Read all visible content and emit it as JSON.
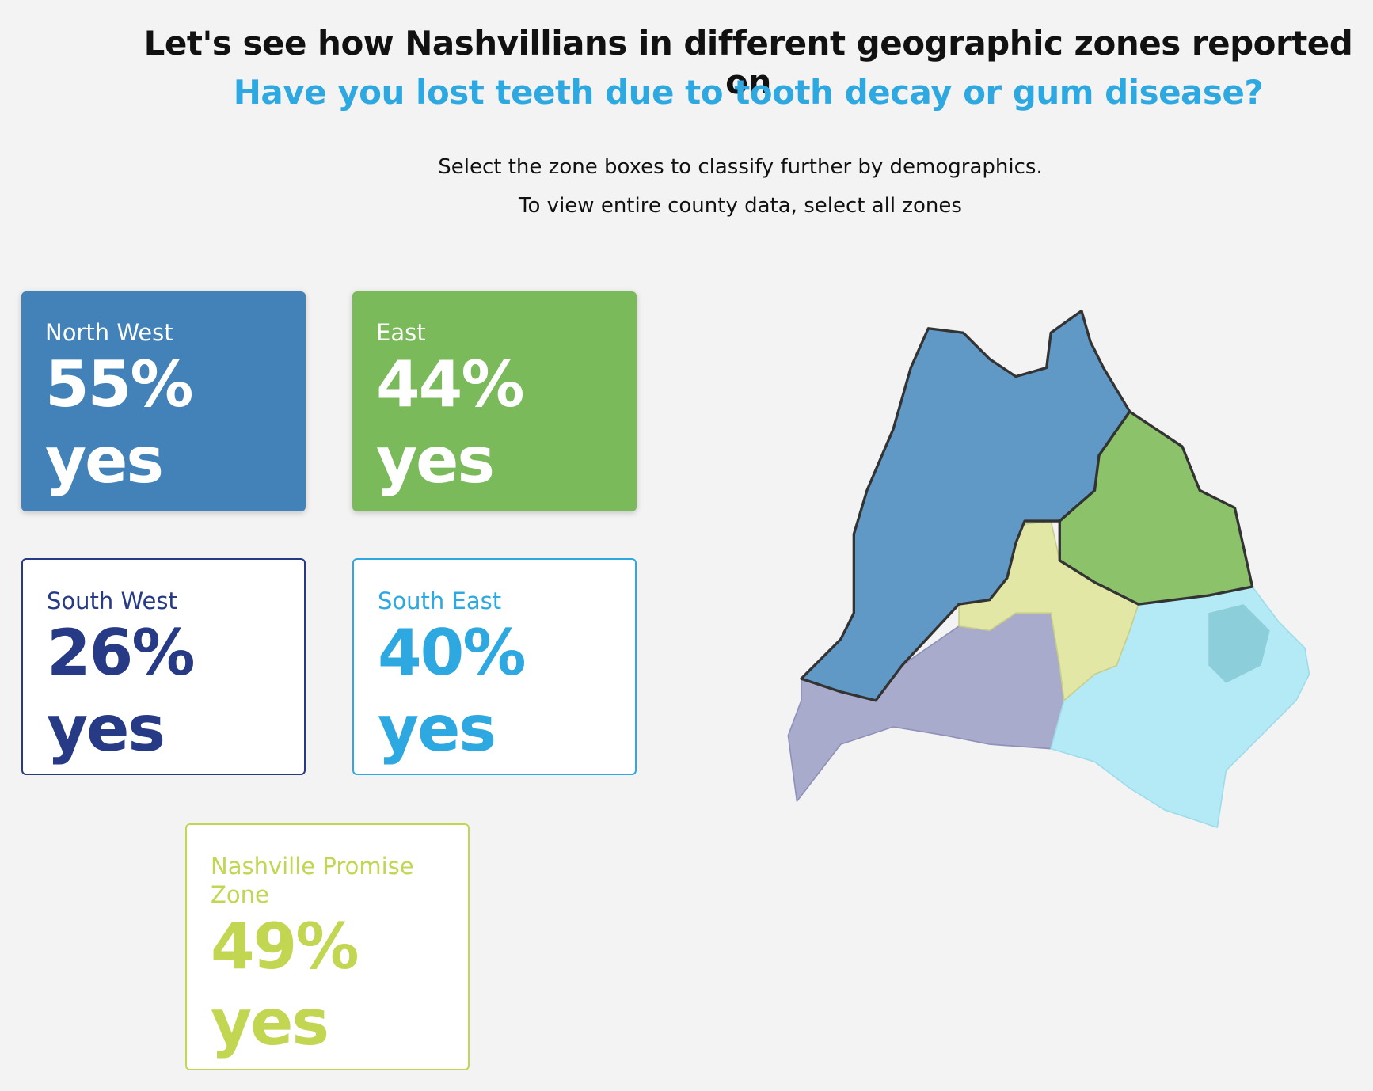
{
  "header": {
    "title": "Let's see how Nashvillians in different geographic zones reported on",
    "question": "Have you lost teeth due to tooth decay or gum disease?"
  },
  "instructions": [
    "Select the zone boxes to classify further by demographics.",
    "To view entire county data, select all zones"
  ],
  "zones": [
    {
      "name": "North West",
      "value": "55%",
      "label": "yes"
    },
    {
      "name": "East",
      "value": "44%",
      "label": "yes"
    },
    {
      "name": "South West",
      "value": "26%",
      "label": "yes"
    },
    {
      "name": "South East",
      "value": "40%",
      "label": "yes"
    },
    {
      "name": "Nashville Promise Zone",
      "value": "49%",
      "label": "yes"
    }
  ]
}
